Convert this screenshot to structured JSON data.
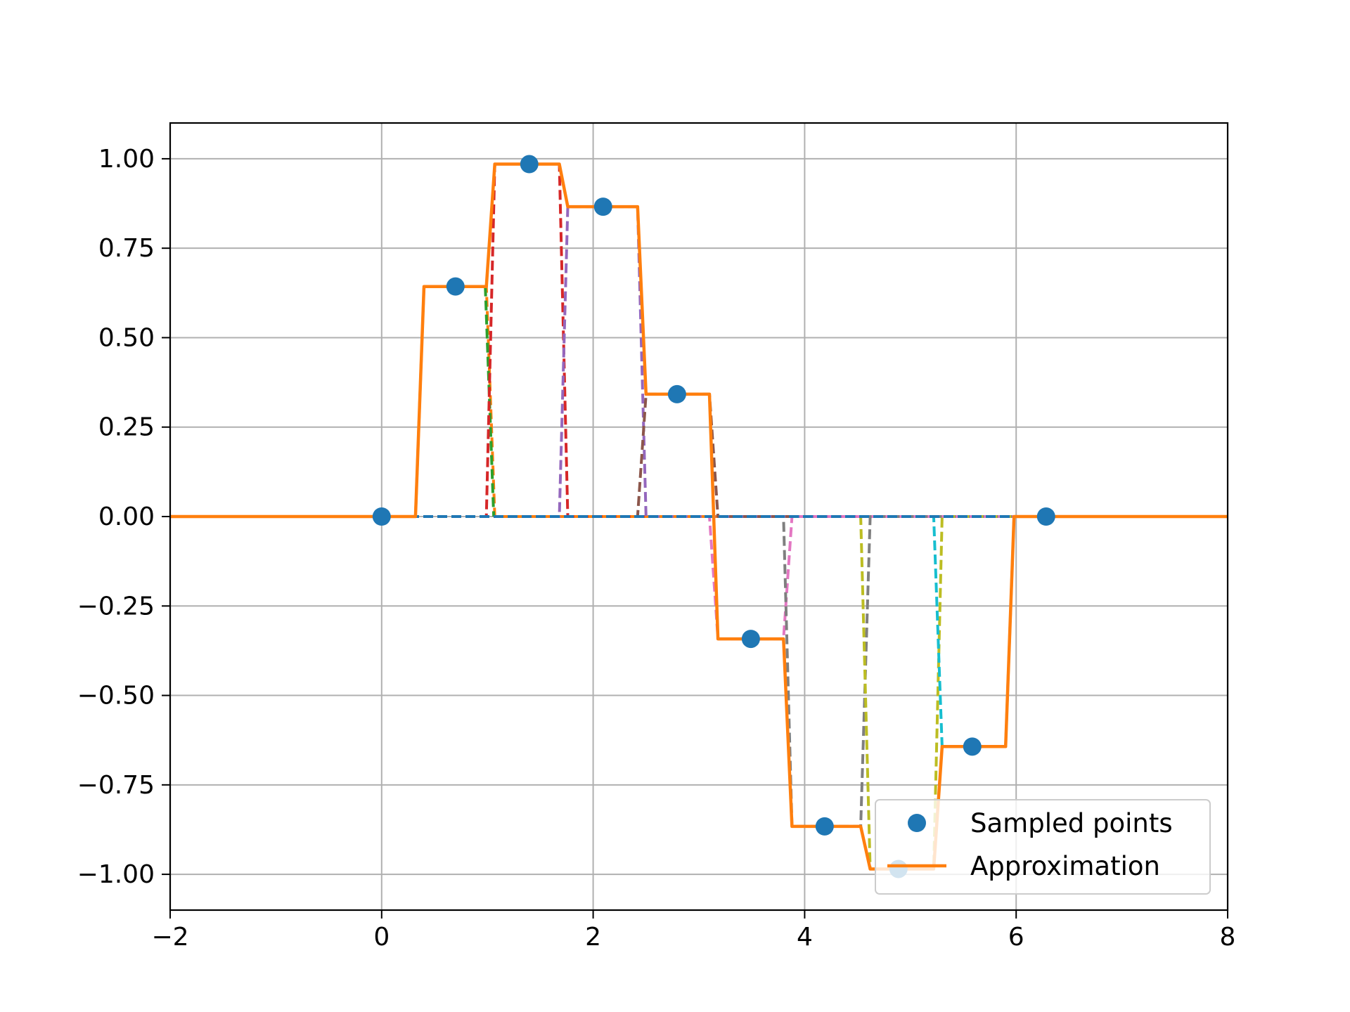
{
  "chart_data": {
    "type": "line",
    "title": "",
    "xlabel": "",
    "ylabel": "",
    "xlim": [
      -2,
      8
    ],
    "ylim": [
      -1.1,
      1.1
    ],
    "xticks": [
      -2,
      0,
      2,
      4,
      6,
      8
    ],
    "xtick_labels": [
      "−2",
      "0",
      "2",
      "4",
      "6",
      "8"
    ],
    "yticks": [
      1.0,
      0.75,
      0.5,
      0.25,
      0.0,
      -0.25,
      -0.5,
      -0.75,
      -1.0
    ],
    "ytick_labels": [
      "1.00",
      "0.75",
      "0.50",
      "0.25",
      "0.00",
      "−0.25",
      "−0.50",
      "−0.75",
      "−1.00"
    ],
    "grid": true,
    "legend_position": "lower-right",
    "sampled_points": {
      "name": "Sampled points",
      "color": "#1f77b4",
      "x": [
        0.0,
        0.698,
        1.396,
        2.094,
        2.793,
        3.491,
        4.189,
        4.887,
        5.585,
        6.283
      ],
      "y": [
        0.0,
        0.643,
        0.985,
        0.866,
        0.342,
        -0.342,
        -0.866,
        -0.985,
        -0.643,
        0.0
      ]
    },
    "approximation": {
      "name": "Approximation",
      "color": "#ff7f0e",
      "x": [
        -2,
        0.32,
        0.4,
        0.99,
        1.07,
        1.68,
        1.76,
        2.42,
        2.5,
        3.1,
        3.18,
        3.8,
        3.88,
        4.53,
        4.62,
        5.22,
        5.3,
        5.9,
        5.98,
        8
      ],
      "y": [
        0,
        0,
        0.643,
        0.643,
        0.985,
        0.985,
        0.866,
        0.866,
        0.342,
        0.342,
        -0.342,
        -0.342,
        -0.866,
        -0.866,
        -0.985,
        -0.985,
        -0.643,
        -0.643,
        0,
        0
      ]
    },
    "basis_functions": [
      {
        "color": "#1f77b4",
        "x": [
          -2,
          8
        ],
        "y": [
          0,
          0
        ]
      },
      {
        "color": "#ff7f0e",
        "x": [
          -2,
          0.32,
          0.4,
          0.99,
          1.07,
          8
        ],
        "y": [
          0,
          0,
          0.643,
          0.643,
          0,
          0
        ]
      },
      {
        "color": "#2ca02c",
        "x": [
          -2,
          0.99,
          1.07,
          8
        ],
        "y": [
          0,
          0,
          0,
          0
        ]
      },
      {
        "color": "#2ca02c",
        "x": [
          0.98,
          1.06
        ],
        "y": [
          0.643,
          0
        ]
      },
      {
        "color": "#d62728",
        "x": [
          -2,
          0.99,
          1.07,
          1.68,
          1.76,
          8
        ],
        "y": [
          0,
          0,
          0.985,
          0.985,
          0,
          0
        ]
      },
      {
        "color": "#9467bd",
        "x": [
          -2,
          1.68,
          1.76,
          2.42,
          2.5,
          8
        ],
        "y": [
          0,
          0,
          0.866,
          0.866,
          0,
          0
        ]
      },
      {
        "color": "#8c564b",
        "x": [
          -2,
          2.42,
          2.5,
          3.1,
          3.18,
          8
        ],
        "y": [
          0,
          0,
          0.342,
          0.342,
          0,
          0
        ]
      },
      {
        "color": "#e377c2",
        "x": [
          -2,
          3.1,
          3.18,
          3.8,
          3.88,
          8
        ],
        "y": [
          0,
          0,
          -0.342,
          -0.342,
          0,
          0
        ]
      },
      {
        "color": "#7f7f7f",
        "x": [
          -2,
          3.8,
          3.88,
          4.53,
          4.62,
          8
        ],
        "y": [
          0,
          0,
          -0.866,
          -0.866,
          0,
          0
        ]
      },
      {
        "color": "#bcbd22",
        "x": [
          -2,
          4.53,
          4.62,
          5.22,
          5.3,
          8
        ],
        "y": [
          0,
          0,
          -0.985,
          -0.985,
          0,
          0
        ]
      },
      {
        "color": "#17becf",
        "x": [
          -2,
          5.22,
          5.3,
          5.9,
          5.98,
          8
        ],
        "y": [
          0,
          0,
          -0.643,
          -0.643,
          0,
          0
        ]
      },
      {
        "color": "#1f77b4",
        "x": [
          -2,
          5.9,
          5.98,
          8
        ],
        "y": [
          0,
          0,
          0,
          0
        ]
      }
    ]
  }
}
